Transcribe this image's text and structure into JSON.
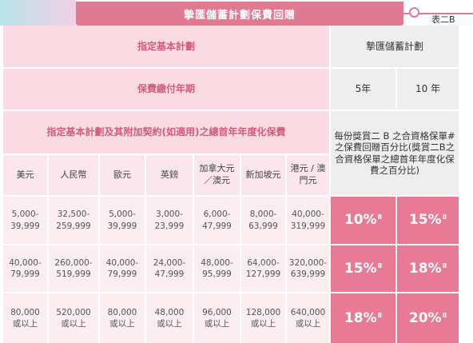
{
  "banner": {
    "title": "摯匯儲蓄計劃保費回贈",
    "table_label": "表二B"
  },
  "header": {
    "designated_basic_plan": "指定基本計劃",
    "premium_payment_term": "保費繳付年期",
    "annualized_premium": "指定基本計劃及其附加契約(如適用)之總首年年度化保費",
    "plan_name": "摯匯儲蓄計劃",
    "term_5": "5年",
    "term_10": "10 年",
    "description": "每份獎賞二 B 之合資格保單#之保費回贈百分比(獎賞二B之合資格保單之總首年年度化保費之百分比)"
  },
  "currencies": [
    "美元",
    "人民幣",
    "歐元",
    "英鎊",
    "加拿大元／澳元",
    "新加坡元",
    "港元 / 澳門元"
  ],
  "rows": [
    {
      "ranges": [
        "5,000-\n39,999",
        "32,500-\n259,999",
        "5,000-\n39,999",
        "3,000-\n23,999",
        "6,000-\n47,999",
        "8,000-\n63,999",
        "40,000-\n319,999"
      ],
      "rate_5": "10%",
      "rate_10": "15%"
    },
    {
      "ranges": [
        "40,000-\n79,999",
        "260,000-\n519,999",
        "40,000-\n79,999",
        "24,000-\n47,999",
        "48,000-\n95,999",
        "64,000-\n127,999",
        "320,000-\n639,999"
      ],
      "rate_5": "15%",
      "rate_10": "18%"
    },
    {
      "ranges": [
        "80,000\n或以上",
        "520,000\n或以上",
        "80,000\n或以上",
        "48,000\n或以上",
        "96,000\n或以上",
        "128,000\n或以上",
        "640,000\n或以上"
      ],
      "rate_5": "18%",
      "rate_10": "20%"
    }
  ],
  "footnote_mark": "8"
}
